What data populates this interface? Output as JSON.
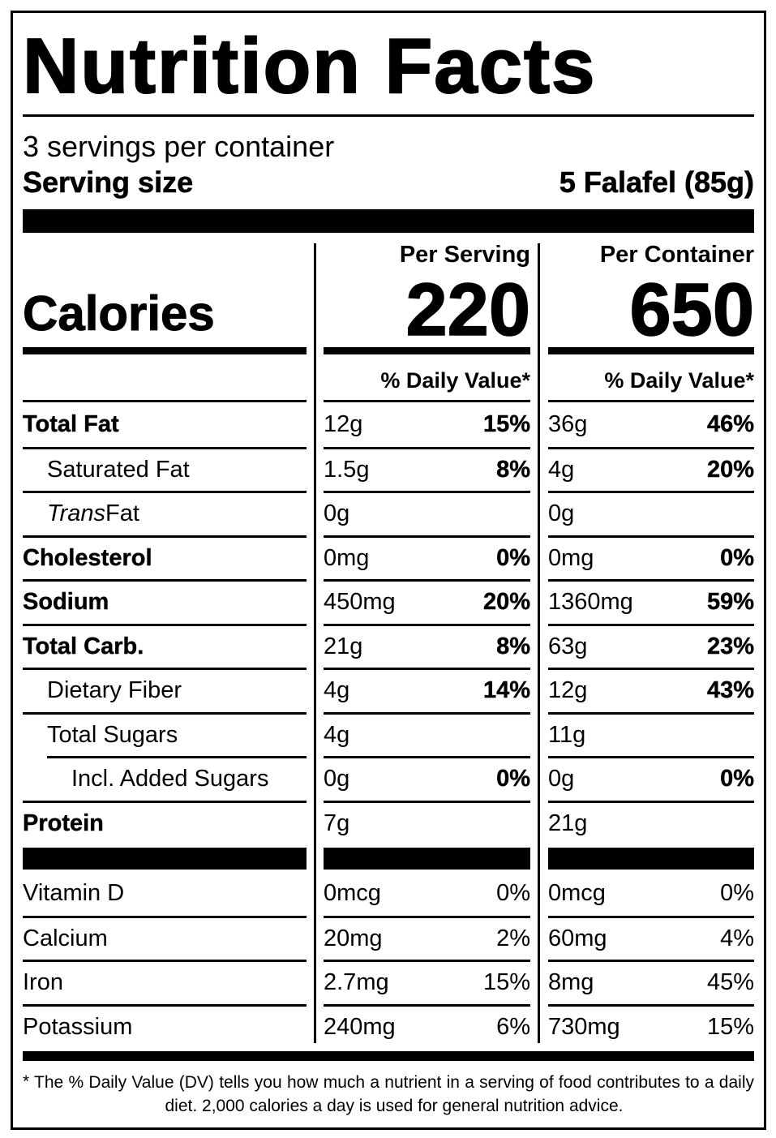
{
  "title": "Nutrition Facts",
  "servings": "3 servings per container",
  "serving_size": {
    "label": "Serving size",
    "value": "5 Falafel (85g)"
  },
  "columns": {
    "per_serving": "Per Serving",
    "per_container": "Per Container"
  },
  "calories": {
    "label": "Calories",
    "per_serving": "220",
    "per_container": "650"
  },
  "dv_header": "% Daily Value*",
  "nutrients": [
    {
      "name": "Total Fat",
      "serving": {
        "amount": "12g",
        "dv": "15%"
      },
      "container": {
        "amount": "36g",
        "dv": "46%"
      },
      "sub": [
        {
          "name": "Saturated Fat",
          "serving": {
            "amount": "1.5g",
            "dv": "8%"
          },
          "container": {
            "amount": "4g",
            "dv": "20%"
          }
        },
        {
          "name_italic": "Trans",
          "name": "Fat",
          "serving": {
            "amount": "0g"
          },
          "container": {
            "amount": "0g"
          }
        }
      ]
    },
    {
      "name": "Cholesterol",
      "serving": {
        "amount": "0mg",
        "dv": "0%"
      },
      "container": {
        "amount": "0mg",
        "dv": "0%"
      }
    },
    {
      "name": "Sodium",
      "serving": {
        "amount": "450mg",
        "dv": "20%"
      },
      "container": {
        "amount": "1360mg",
        "dv": "59%"
      }
    },
    {
      "name": "Total Carb.",
      "serving": {
        "amount": "21g",
        "dv": "8%"
      },
      "container": {
        "amount": "63g",
        "dv": "23%"
      },
      "sub": [
        {
          "name": "Dietary Fiber",
          "serving": {
            "amount": "4g",
            "dv": "14%"
          },
          "container": {
            "amount": "12g",
            "dv": "43%"
          }
        },
        {
          "name": "Total Sugars",
          "serving": {
            "amount": "4g"
          },
          "container": {
            "amount": "11g"
          },
          "sub": [
            {
              "name": "Incl. Added Sugars",
              "serving": {
                "amount": "0g",
                "dv": "0%"
              },
              "container": {
                "amount": "0g",
                "dv": "0%"
              }
            }
          ]
        }
      ]
    },
    {
      "name": "Protein",
      "serving": {
        "amount": "7g"
      },
      "container": {
        "amount": "21g"
      }
    }
  ],
  "vitamins": [
    {
      "name": "Vitamin D",
      "serving": {
        "amount": "0mcg",
        "dv": "0%"
      },
      "container": {
        "amount": "0mcg",
        "dv": "0%"
      }
    },
    {
      "name": "Calcium",
      "serving": {
        "amount": "20mg",
        "dv": "2%"
      },
      "container": {
        "amount": "60mg",
        "dv": "4%"
      }
    },
    {
      "name": "Iron",
      "serving": {
        "amount": "2.7mg",
        "dv": "15%"
      },
      "container": {
        "amount": "8mg",
        "dv": "45%"
      }
    },
    {
      "name": "Potassium",
      "serving": {
        "amount": "240mg",
        "dv": "6%"
      },
      "container": {
        "amount": "730mg",
        "dv": "15%"
      }
    }
  ],
  "footnote": {
    "marker": "*",
    "text": "The % Daily Value (DV) tells you how much a nutrient in a serving of food contributes to a daily diet. 2,000 calories a day is used for general nutrition advice."
  }
}
